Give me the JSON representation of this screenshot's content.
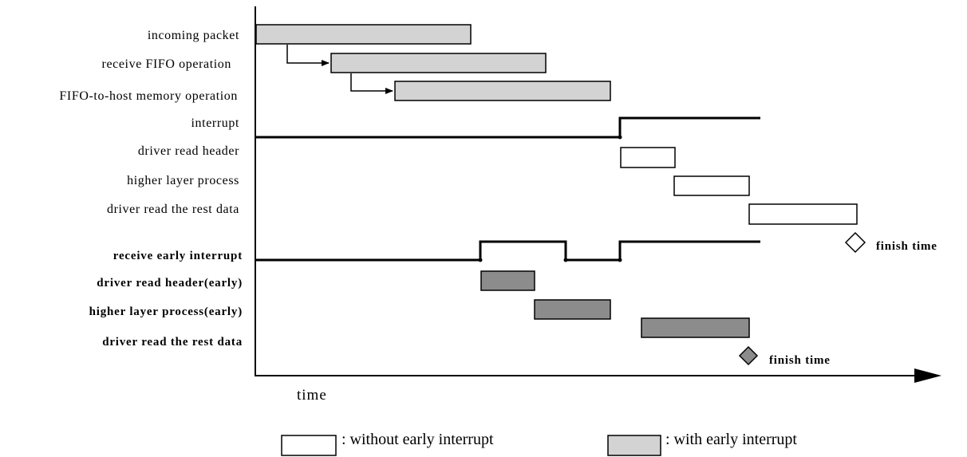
{
  "rows": {
    "incoming_packet": "incoming packet",
    "receive_fifo": "receive FIFO operation",
    "fifo_to_host": "FIFO-to-host memory operation",
    "interrupt": "interrupt",
    "driver_read_header": "driver read header",
    "higher_layer_process": "higher layer process",
    "driver_read_rest": "driver read the rest data",
    "receive_early_interrupt": "receive early interrupt",
    "driver_read_header_early": "driver read header(early)",
    "higher_layer_process_early": "higher layer process(early)",
    "driver_read_rest_early": "driver read the rest data"
  },
  "markers": {
    "finish_normal": "finish time",
    "finish_early": "finish time"
  },
  "axis": {
    "x_label": "time"
  },
  "legend": {
    "without": ": without early interrupt",
    "with": ": with early interrupt"
  },
  "colors": {
    "light_bar": "#d3d3d3",
    "white_bar": "#ffffff",
    "dark_bar": "#8c8c8c",
    "line": "#000000"
  }
}
